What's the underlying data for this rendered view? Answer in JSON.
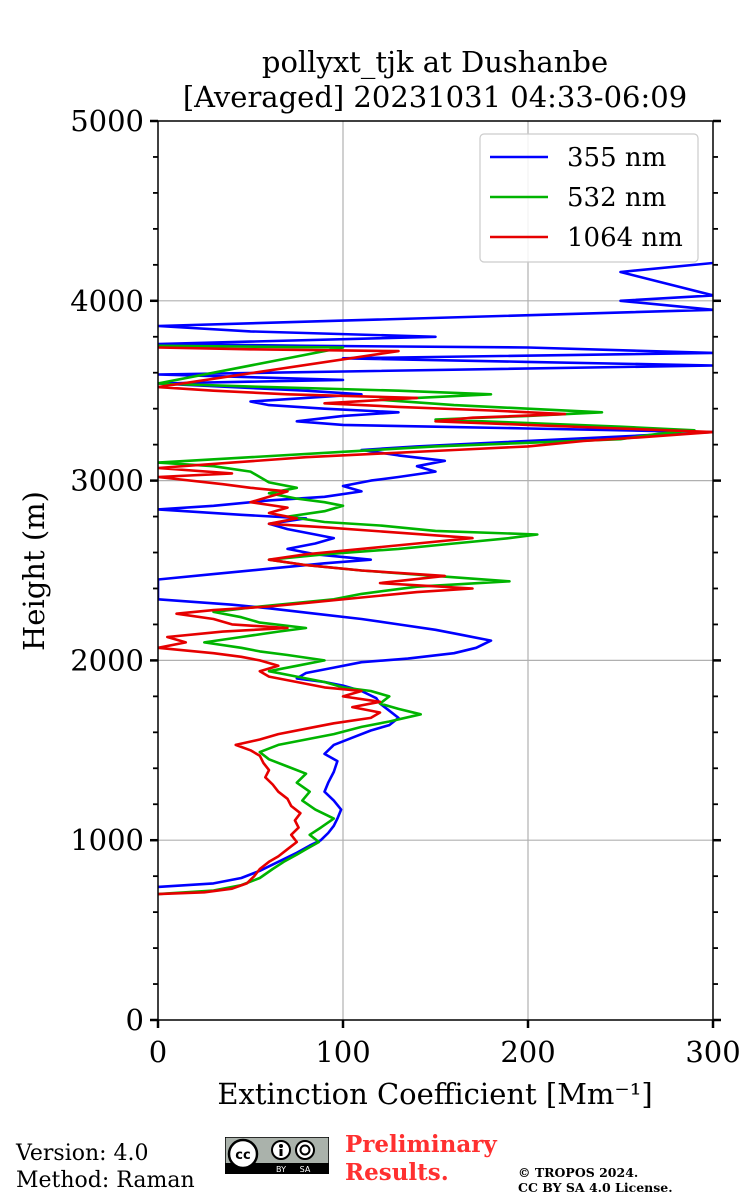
{
  "chart_data": {
    "type": "line",
    "title": [
      "pollyxt_tjk at Dushanbe",
      "[Averaged] 20231031 04:33-06:09"
    ],
    "xlabel": "Extinction Coefficient [Mm⁻¹]",
    "ylabel": "Height (m)",
    "xlim": [
      0,
      300
    ],
    "ylim": [
      0,
      5000
    ],
    "xticks": [
      0,
      100,
      200,
      300
    ],
    "yticks": [
      0,
      1000,
      2000,
      3000,
      4000,
      5000
    ],
    "grid": true,
    "legend_position": "top-right",
    "series": [
      {
        "name": "355 nm",
        "color": "#0000ff",
        "points": [
          [
            0,
            740
          ],
          [
            30,
            760
          ],
          [
            45,
            790
          ],
          [
            55,
            830
          ],
          [
            65,
            880
          ],
          [
            75,
            930
          ],
          [
            82,
            970
          ],
          [
            88,
            1000
          ],
          [
            92,
            1040
          ],
          [
            95,
            1080
          ],
          [
            97,
            1120
          ],
          [
            99,
            1170
          ],
          [
            95,
            1220
          ],
          [
            90,
            1270
          ],
          [
            92,
            1320
          ],
          [
            95,
            1380
          ],
          [
            97,
            1440
          ],
          [
            90,
            1480
          ],
          [
            95,
            1530
          ],
          [
            105,
            1570
          ],
          [
            115,
            1610
          ],
          [
            125,
            1640
          ],
          [
            130,
            1680
          ],
          [
            125,
            1720
          ],
          [
            120,
            1760
          ],
          [
            118,
            1790
          ],
          [
            110,
            1830
          ],
          [
            100,
            1860
          ],
          [
            90,
            1880
          ],
          [
            75,
            1900
          ],
          [
            80,
            1930
          ],
          [
            95,
            1960
          ],
          [
            110,
            1990
          ],
          [
            135,
            2010
          ],
          [
            160,
            2040
          ],
          [
            172,
            2070
          ],
          [
            180,
            2110
          ],
          [
            165,
            2140
          ],
          [
            150,
            2170
          ],
          [
            130,
            2200
          ],
          [
            110,
            2230
          ],
          [
            85,
            2260
          ],
          [
            60,
            2290
          ],
          [
            40,
            2310
          ],
          [
            0,
            2340
          ],
          [
            0,
            2450
          ],
          [
            30,
            2480
          ],
          [
            60,
            2510
          ],
          [
            90,
            2540
          ],
          [
            115,
            2560
          ],
          [
            85,
            2590
          ],
          [
            70,
            2620
          ],
          [
            85,
            2650
          ],
          [
            95,
            2680
          ],
          [
            85,
            2700
          ],
          [
            70,
            2730
          ],
          [
            60,
            2760
          ],
          [
            80,
            2790
          ],
          [
            45,
            2810
          ],
          [
            0,
            2840
          ],
          [
            30,
            2860
          ],
          [
            60,
            2890
          ],
          [
            90,
            2910
          ],
          [
            110,
            2940
          ],
          [
            100,
            2970
          ],
          [
            115,
            3000
          ],
          [
            130,
            3020
          ],
          [
            150,
            3050
          ],
          [
            140,
            3080
          ],
          [
            155,
            3110
          ],
          [
            130,
            3140
          ],
          [
            110,
            3170
          ],
          [
            140,
            3190
          ],
          [
            180,
            3210
          ],
          [
            220,
            3230
          ],
          [
            260,
            3250
          ],
          [
            300,
            3270
          ],
          [
            200,
            3290
          ],
          [
            150,
            3300
          ],
          [
            100,
            3310
          ],
          [
            75,
            3330
          ],
          [
            100,
            3360
          ],
          [
            130,
            3380
          ],
          [
            90,
            3400
          ],
          [
            60,
            3420
          ],
          [
            50,
            3440
          ],
          [
            80,
            3460
          ],
          [
            110,
            3480
          ],
          [
            80,
            3500
          ],
          [
            40,
            3520
          ],
          [
            0,
            3540
          ],
          [
            100,
            3560
          ],
          [
            0,
            3590
          ],
          [
            300,
            3640
          ],
          [
            200,
            3660
          ],
          [
            100,
            3680
          ],
          [
            300,
            3710
          ],
          [
            200,
            3740
          ],
          [
            80,
            3750
          ],
          [
            0,
            3760
          ],
          [
            150,
            3800
          ],
          [
            50,
            3830
          ],
          [
            0,
            3860
          ],
          [
            100,
            3890
          ],
          [
            300,
            3950
          ],
          [
            250,
            4000
          ],
          [
            300,
            4030
          ],
          [
            250,
            4160
          ],
          [
            300,
            4210
          ]
        ]
      },
      {
        "name": "532 nm",
        "color": "#00b400",
        "points": [
          [
            0,
            700
          ],
          [
            30,
            720
          ],
          [
            45,
            750
          ],
          [
            55,
            790
          ],
          [
            62,
            840
          ],
          [
            68,
            880
          ],
          [
            75,
            920
          ],
          [
            80,
            950
          ],
          [
            87,
            990
          ],
          [
            82,
            1030
          ],
          [
            88,
            1070
          ],
          [
            95,
            1120
          ],
          [
            85,
            1170
          ],
          [
            78,
            1220
          ],
          [
            82,
            1270
          ],
          [
            75,
            1320
          ],
          [
            80,
            1370
          ],
          [
            70,
            1410
          ],
          [
            60,
            1450
          ],
          [
            55,
            1490
          ],
          [
            65,
            1530
          ],
          [
            80,
            1560
          ],
          [
            95,
            1590
          ],
          [
            110,
            1630
          ],
          [
            125,
            1660
          ],
          [
            142,
            1700
          ],
          [
            130,
            1730
          ],
          [
            120,
            1760
          ],
          [
            125,
            1800
          ],
          [
            115,
            1830
          ],
          [
            100,
            1850
          ],
          [
            90,
            1880
          ],
          [
            75,
            1910
          ],
          [
            60,
            1940
          ],
          [
            75,
            1970
          ],
          [
            90,
            2000
          ],
          [
            70,
            2030
          ],
          [
            55,
            2050
          ],
          [
            45,
            2070
          ],
          [
            25,
            2100
          ],
          [
            45,
            2130
          ],
          [
            65,
            2160
          ],
          [
            80,
            2180
          ],
          [
            55,
            2210
          ],
          [
            45,
            2240
          ],
          [
            30,
            2270
          ],
          [
            55,
            2300
          ],
          [
            75,
            2320
          ],
          [
            95,
            2340
          ],
          [
            110,
            2370
          ],
          [
            140,
            2410
          ],
          [
            190,
            2440
          ],
          [
            150,
            2470
          ],
          [
            110,
            2500
          ],
          [
            80,
            2530
          ],
          [
            60,
            2560
          ],
          [
            90,
            2590
          ],
          [
            130,
            2620
          ],
          [
            160,
            2650
          ],
          [
            190,
            2680
          ],
          [
            205,
            2700
          ],
          [
            150,
            2720
          ],
          [
            120,
            2750
          ],
          [
            90,
            2770
          ],
          [
            70,
            2800
          ],
          [
            90,
            2830
          ],
          [
            100,
            2860
          ],
          [
            90,
            2880
          ],
          [
            75,
            2900
          ],
          [
            60,
            2930
          ],
          [
            75,
            2960
          ],
          [
            60,
            2990
          ],
          [
            55,
            3020
          ],
          [
            50,
            3050
          ],
          [
            30,
            3080
          ],
          [
            0,
            3100
          ],
          [
            50,
            3130
          ],
          [
            100,
            3160
          ],
          [
            150,
            3190
          ],
          [
            200,
            3210
          ],
          [
            250,
            3230
          ],
          [
            270,
            3260
          ],
          [
            290,
            3280
          ],
          [
            250,
            3300
          ],
          [
            200,
            3320
          ],
          [
            150,
            3340
          ],
          [
            200,
            3360
          ],
          [
            240,
            3380
          ],
          [
            200,
            3400
          ],
          [
            160,
            3420
          ],
          [
            120,
            3450
          ],
          [
            180,
            3480
          ],
          [
            130,
            3500
          ],
          [
            60,
            3520
          ],
          [
            0,
            3540
          ],
          [
            100,
            3740
          ],
          [
            0,
            3750
          ]
        ]
      },
      {
        "name": "1064 nm",
        "color": "#e60000",
        "points": [
          [
            0,
            700
          ],
          [
            25,
            710
          ],
          [
            40,
            730
          ],
          [
            48,
            760
          ],
          [
            52,
            800
          ],
          [
            55,
            840
          ],
          [
            60,
            880
          ],
          [
            65,
            910
          ],
          [
            70,
            950
          ],
          [
            75,
            990
          ],
          [
            72,
            1030
          ],
          [
            76,
            1070
          ],
          [
            74,
            1110
          ],
          [
            77,
            1150
          ],
          [
            72,
            1190
          ],
          [
            70,
            1230
          ],
          [
            65,
            1270
          ],
          [
            62,
            1310
          ],
          [
            58,
            1350
          ],
          [
            60,
            1390
          ],
          [
            57,
            1430
          ],
          [
            55,
            1470
          ],
          [
            50,
            1500
          ],
          [
            42,
            1530
          ],
          [
            55,
            1560
          ],
          [
            65,
            1590
          ],
          [
            80,
            1620
          ],
          [
            95,
            1650
          ],
          [
            115,
            1680
          ],
          [
            120,
            1710
          ],
          [
            105,
            1740
          ],
          [
            120,
            1770
          ],
          [
            100,
            1800
          ],
          [
            110,
            1830
          ],
          [
            90,
            1850
          ],
          [
            75,
            1880
          ],
          [
            60,
            1910
          ],
          [
            55,
            1940
          ],
          [
            65,
            1970
          ],
          [
            55,
            2000
          ],
          [
            45,
            2020
          ],
          [
            30,
            2040
          ],
          [
            0,
            2070
          ],
          [
            15,
            2100
          ],
          [
            5,
            2130
          ],
          [
            35,
            2160
          ],
          [
            70,
            2180
          ],
          [
            40,
            2200
          ],
          [
            30,
            2230
          ],
          [
            10,
            2260
          ],
          [
            30,
            2280
          ],
          [
            60,
            2300
          ],
          [
            80,
            2320
          ],
          [
            110,
            2350
          ],
          [
            140,
            2380
          ],
          [
            170,
            2400
          ],
          [
            120,
            2430
          ],
          [
            155,
            2470
          ],
          [
            110,
            2500
          ],
          [
            80,
            2530
          ],
          [
            60,
            2560
          ],
          [
            80,
            2590
          ],
          [
            110,
            2620
          ],
          [
            140,
            2650
          ],
          [
            170,
            2680
          ],
          [
            130,
            2710
          ],
          [
            90,
            2740
          ],
          [
            60,
            2760
          ],
          [
            75,
            2790
          ],
          [
            60,
            2820
          ],
          [
            70,
            2850
          ],
          [
            50,
            2880
          ],
          [
            60,
            2910
          ],
          [
            70,
            2940
          ],
          [
            50,
            2960
          ],
          [
            35,
            2980
          ],
          [
            0,
            3020
          ],
          [
            40,
            3040
          ],
          [
            0,
            3070
          ],
          [
            40,
            3100
          ],
          [
            80,
            3130
          ],
          [
            120,
            3150
          ],
          [
            160,
            3170
          ],
          [
            200,
            3190
          ],
          [
            230,
            3220
          ],
          [
            260,
            3240
          ],
          [
            300,
            3270
          ],
          [
            250,
            3290
          ],
          [
            200,
            3310
          ],
          [
            150,
            3330
          ],
          [
            170,
            3350
          ],
          [
            220,
            3370
          ],
          [
            180,
            3390
          ],
          [
            130,
            3410
          ],
          [
            90,
            3430
          ],
          [
            140,
            3460
          ],
          [
            70,
            3480
          ],
          [
            30,
            3500
          ],
          [
            0,
            3520
          ],
          [
            130,
            3720
          ],
          [
            50,
            3730
          ],
          [
            0,
            3740
          ]
        ]
      }
    ]
  },
  "footer": {
    "version": "Version: 4.0",
    "method": "Method: Raman",
    "license_badge": "cc-by-sa-icon",
    "preliminary": [
      "Preliminary",
      "Results."
    ],
    "copyright": [
      "© TROPOS 2024.",
      "CC BY SA 4.0 License."
    ]
  }
}
